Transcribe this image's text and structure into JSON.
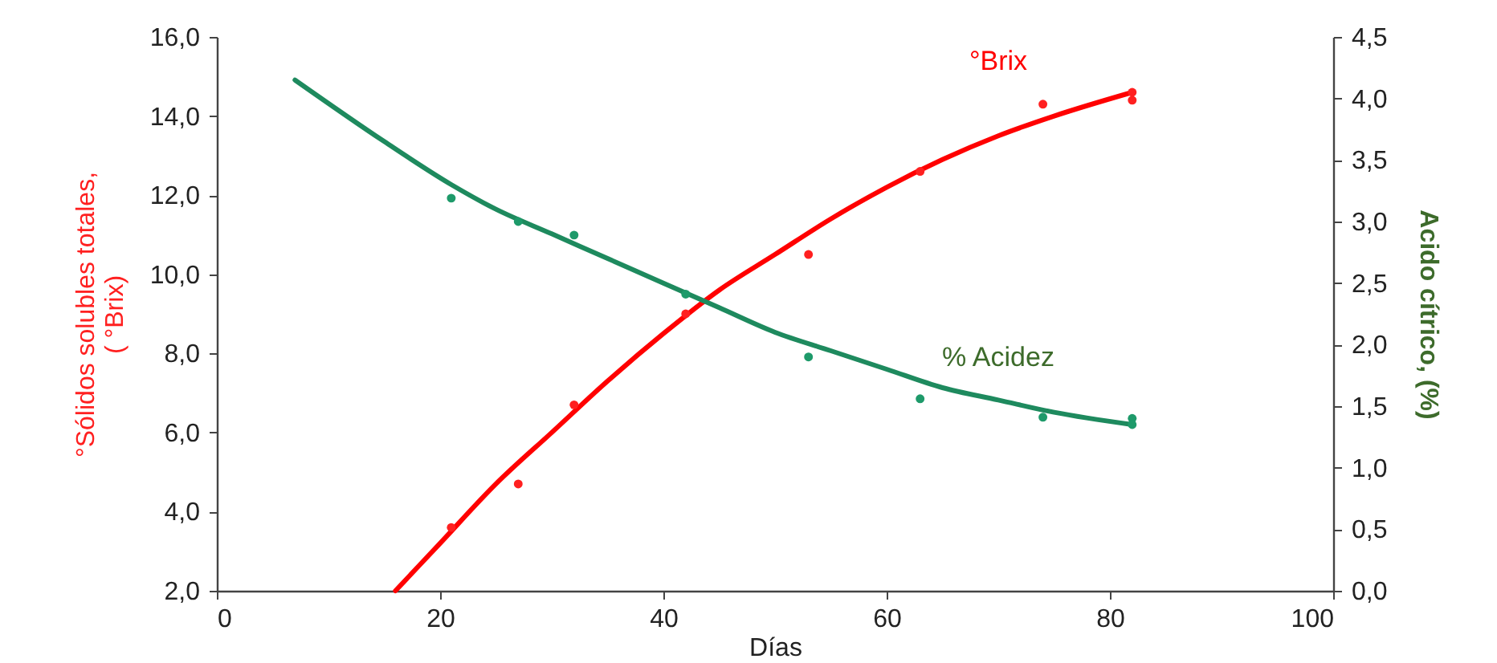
{
  "chart_data": {
    "type": "scatter",
    "xlabel": "Días",
    "ylabel": "°Sólidos solubles totales,\n( °Brix)",
    "y2label": "Acido cítrico, (%)",
    "xlim": [
      0,
      100
    ],
    "xticks": [
      0,
      20,
      40,
      60,
      80,
      100
    ],
    "ylim": [
      2,
      16
    ],
    "yticks": [
      {
        "value": 2,
        "label": "2,0"
      },
      {
        "value": 4,
        "label": "4,0"
      },
      {
        "value": 6,
        "label": "6,0"
      },
      {
        "value": 8,
        "label": "8,0"
      },
      {
        "value": 10,
        "label": "10,0"
      },
      {
        "value": 12,
        "label": "12,0"
      },
      {
        "value": 14,
        "label": "14,0"
      },
      {
        "value": 16,
        "label": "16,0"
      }
    ],
    "y2lim": [
      0,
      4.5
    ],
    "y2ticks": [
      {
        "value": 0,
        "label": "0,0"
      },
      {
        "value": 0.5,
        "label": "0,5"
      },
      {
        "value": 1,
        "label": "1,0"
      },
      {
        "value": 1.5,
        "label": "1,5"
      },
      {
        "value": 2,
        "label": "2,0"
      },
      {
        "value": 2.5,
        "label": "2,5"
      },
      {
        "value": 3,
        "label": "3,0"
      },
      {
        "value": 3.5,
        "label": "3,5"
      },
      {
        "value": 4,
        "label": "4,0"
      },
      {
        "value": 4.5,
        "label": "4,5"
      }
    ],
    "grid": false,
    "marker": "circle",
    "series": [
      {
        "color": "#ff2020",
        "x": [
          21,
          27,
          32,
          42,
          53,
          63,
          74,
          82,
          82
        ],
        "values": [
          3.6,
          4.7,
          6.7,
          9.0,
          10.5,
          12.6,
          14.3,
          14.4,
          14.6
        ]
      },
      {
        "type": "line",
        "marker": "none",
        "name": "°Brix",
        "color": "#ff0000",
        "x": [
          16,
          20,
          25,
          30,
          35,
          40,
          45,
          50,
          55,
          60,
          65,
          70,
          75,
          82
        ],
        "values": [
          2.0,
          3.2,
          4.7,
          6.0,
          7.3,
          8.5,
          9.6,
          10.5,
          11.4,
          12.2,
          12.9,
          13.5,
          14.0,
          14.6
        ]
      },
      {
        "axis": "y2",
        "color": "#1e9a6a",
        "x": [
          21,
          27,
          32,
          42,
          53,
          63,
          74,
          82,
          82
        ],
        "values": [
          3.19,
          3.0,
          2.89,
          2.41,
          1.9,
          1.56,
          1.41,
          1.4,
          1.35
        ]
      },
      {
        "type": "line",
        "marker": "none",
        "axis": "y2",
        "name": "% Acidez",
        "color": "#1e8a5e",
        "x": [
          7,
          15,
          21,
          25,
          30,
          35,
          40,
          45,
          50,
          55,
          60,
          65,
          70,
          75,
          82
        ],
        "values": [
          4.15,
          3.65,
          3.3,
          3.1,
          2.9,
          2.7,
          2.5,
          2.3,
          2.1,
          1.95,
          1.8,
          1.65,
          1.55,
          1.45,
          1.35
        ]
      }
    ]
  }
}
